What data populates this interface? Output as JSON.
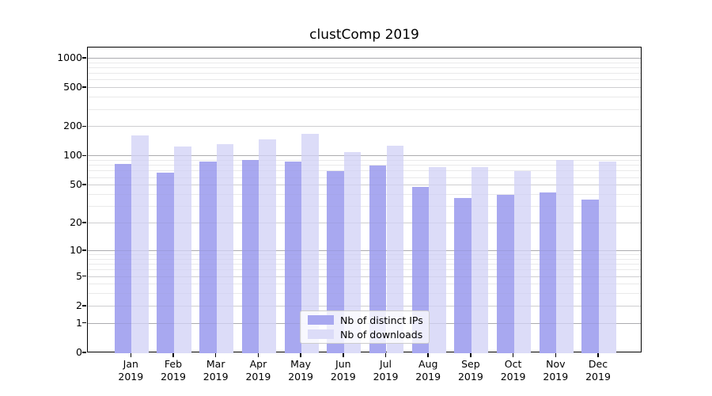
{
  "title": "clustComp 2019",
  "chart_data": {
    "type": "bar",
    "title": "clustComp 2019",
    "categories": [
      "Jan",
      "Feb",
      "Mar",
      "Apr",
      "May",
      "Jun",
      "Jul",
      "Aug",
      "Sep",
      "Oct",
      "Nov",
      "Dec"
    ],
    "category_year": "2019",
    "series": [
      {
        "name": "Nb of distinct IPs",
        "color": "#a8a8f0",
        "values": [
          84,
          68,
          88,
          91,
          88,
          71,
          81,
          48,
          37,
          40,
          42,
          36
        ]
      },
      {
        "name": "Nb of downloads",
        "color": "#dcdcf8",
        "values": [
          163,
          127,
          134,
          150,
          171,
          110,
          128,
          77,
          77,
          70,
          91,
          88
        ]
      }
    ],
    "yscale": "log1p",
    "ylim": [
      0,
      1285
    ],
    "yticks": [
      0,
      1,
      2,
      5,
      10,
      20,
      50,
      100,
      200,
      500,
      1000
    ],
    "grid": true,
    "grid_levels": {
      "major": [
        1,
        10,
        100,
        1000
      ],
      "mid": [
        2,
        5,
        20,
        50,
        200,
        500
      ],
      "minor": [
        3,
        4,
        6,
        7,
        8,
        9,
        30,
        40,
        60,
        70,
        80,
        90,
        300,
        400,
        600,
        700,
        800,
        900
      ]
    },
    "legend_position": "lower center"
  }
}
